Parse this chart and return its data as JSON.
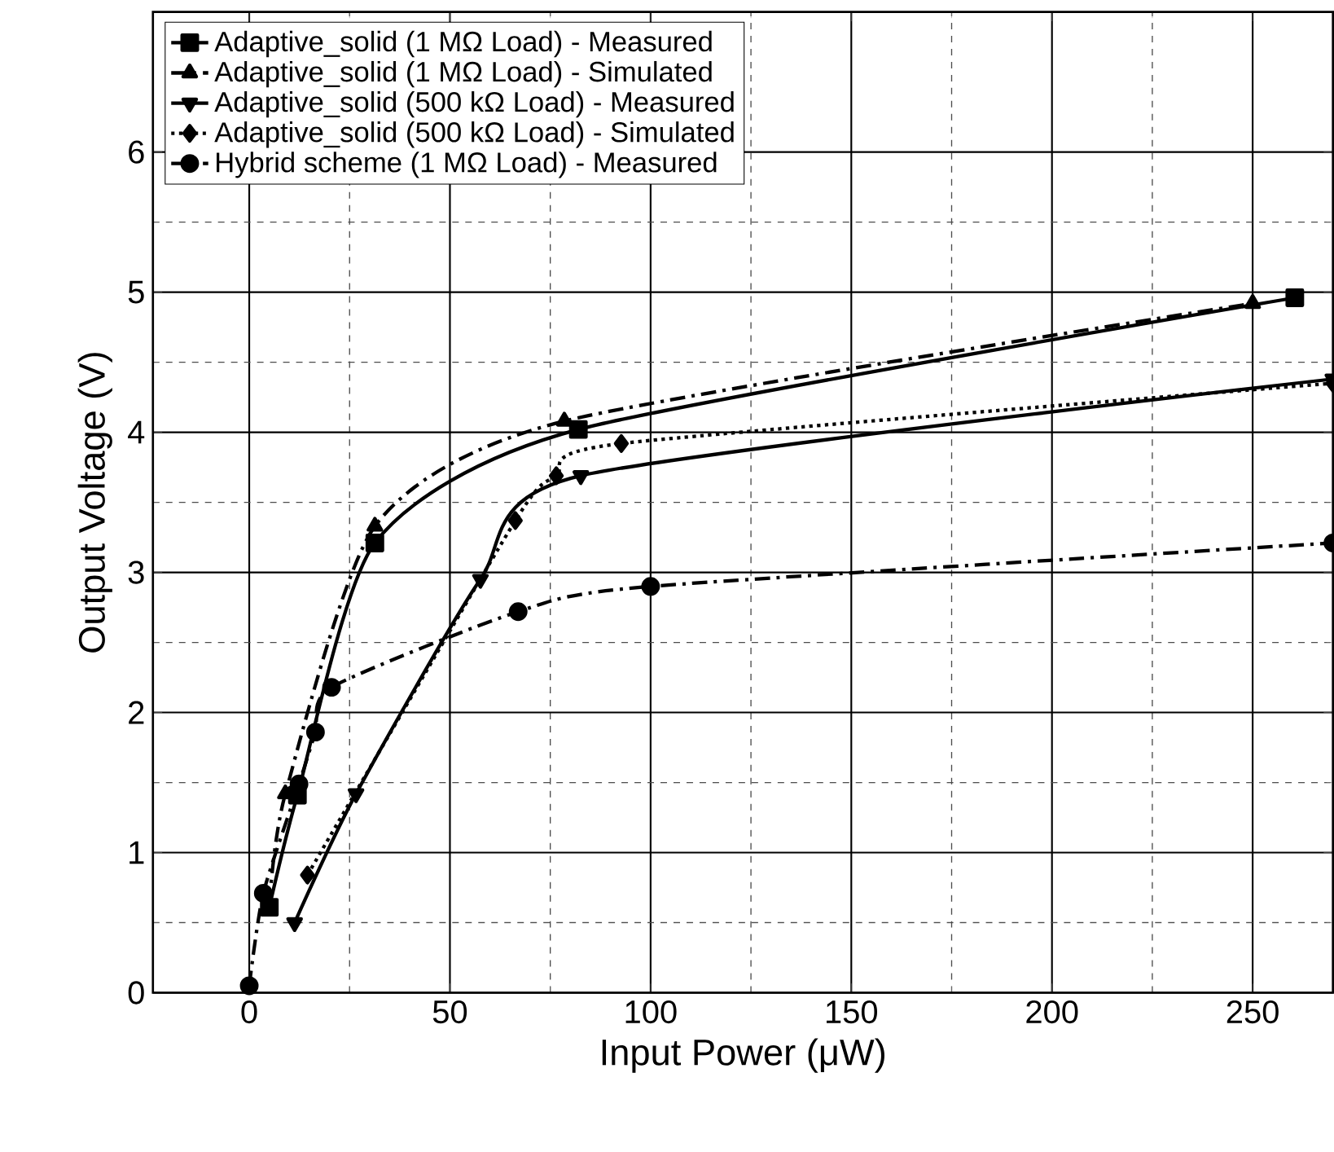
{
  "chart_data": {
    "type": "line",
    "xlabel": "Input Power (μW)",
    "ylabel": "Output Voltage (V)",
    "xlim": [
      -24,
      270
    ],
    "ylim": [
      0,
      7
    ],
    "xticks": [
      0,
      50,
      100,
      150,
      200,
      250
    ],
    "yticks": [
      0,
      1,
      2,
      3,
      4,
      5,
      6
    ],
    "grid": true,
    "legend": "top left",
    "series": [
      {
        "name": "Adaptive_solid (1 MΩ Load) - Measured",
        "color": "#000000",
        "marker": "square",
        "line_style": "solid",
        "x": [
          5,
          12,
          31.3,
          82,
          260.5
        ],
        "values": [
          0.61,
          1.41,
          3.21,
          4.02,
          4.96
        ]
      },
      {
        "name": "Adaptive_solid (1 MΩ Load) - Simulated",
        "color": "#000000",
        "marker": "triangle",
        "line_style": "dashed",
        "x": [
          5,
          9,
          31.3,
          78.5,
          250
        ],
        "values": [
          0.63,
          1.42,
          3.33,
          4.08,
          4.92
        ]
      },
      {
        "name": "Adaptive_solid (500 kΩ Load) - Measured",
        "color": "#000000",
        "marker": "triangle-down",
        "line_style": "solid",
        "x": [
          11.3,
          26.6,
          57.6,
          82.6,
          270
        ],
        "values": [
          0.5,
          1.42,
          2.95,
          3.69,
          4.38
        ]
      },
      {
        "name": "Adaptive_solid (500 kΩ Load) - Simulated",
        "color": "#000000",
        "marker": "diamond",
        "line_style": "dotted",
        "x": [
          14.5,
          66.3,
          76.5,
          92.7,
          270
        ],
        "values": [
          0.84,
          3.37,
          3.69,
          3.92,
          4.35
        ]
      },
      {
        "name": "Hybrid scheme (1 MΩ Load) - Measured",
        "color": "#000000",
        "marker": "circle",
        "line_style": "dashed",
        "x": [
          0,
          3.5,
          12.4,
          16.5,
          20.5,
          67,
          100,
          270
        ],
        "values": [
          0.05,
          0.71,
          1.49,
          1.86,
          2.18,
          2.72,
          2.9,
          3.21
        ]
      }
    ]
  }
}
